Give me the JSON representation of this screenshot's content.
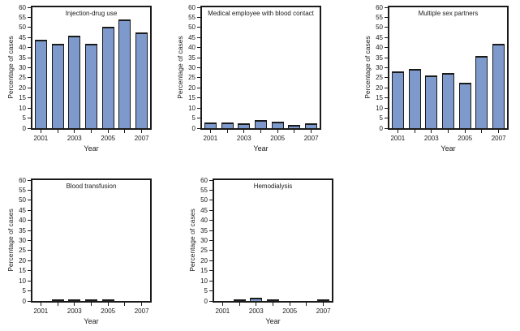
{
  "figure": {
    "background": "#ffffff",
    "text_color": "#1a1a1a",
    "axis_color": "#1a1a1a",
    "bar_fill": "#7e9acd",
    "bar_border": "#1a1a1a"
  },
  "chart_data": [
    {
      "type": "bar",
      "title": "Injection-drug use",
      "xlabel": "Year",
      "ylabel": "Percentage of cases",
      "categories": [
        "2001",
        "2002",
        "2003",
        "2004",
        "2005",
        "2006",
        "2007"
      ],
      "labeled_x_ticks": [
        "2001",
        "2003",
        "2005",
        "2007"
      ],
      "values": [
        44,
        42,
        46,
        42,
        50.5,
        54,
        47.5
      ],
      "ylim": [
        0,
        60
      ],
      "ytick_step": 5,
      "grid": false,
      "legend": "none"
    },
    {
      "type": "bar",
      "title": "Medical employee with blood contact",
      "xlabel": "Year",
      "ylabel": "Percentage of cases",
      "categories": [
        "2001",
        "2002",
        "2003",
        "2004",
        "2005",
        "2006",
        "2007"
      ],
      "labeled_x_ticks": [
        "2001",
        "2003",
        "2005",
        "2007"
      ],
      "values": [
        2.7,
        2.7,
        2.4,
        4,
        3.4,
        1.8,
        2.4
      ],
      "ylim": [
        0,
        60
      ],
      "ytick_step": 5,
      "grid": false,
      "legend": "none"
    },
    {
      "type": "bar",
      "title": "Multiple sex partners",
      "xlabel": "Year",
      "ylabel": "Percentage of cases",
      "categories": [
        "2001",
        "2002",
        "2003",
        "2004",
        "2005",
        "2006",
        "2007"
      ],
      "labeled_x_ticks": [
        "2001",
        "2003",
        "2005",
        "2007"
      ],
      "values": [
        28,
        29.5,
        26,
        27.5,
        22.5,
        36,
        42
      ],
      "ylim": [
        0,
        60
      ],
      "ytick_step": 5,
      "grid": false,
      "legend": "none"
    },
    {
      "type": "bar",
      "title": "Blood transfusion",
      "xlabel": "Year",
      "ylabel": "Percentage of cases",
      "categories": [
        "2001",
        "2002",
        "2003",
        "2004",
        "2005",
        "2006",
        "2007"
      ],
      "labeled_x_ticks": [
        "2001",
        "2003",
        "2005",
        "2007"
      ],
      "values": [
        0,
        0.7,
        0.7,
        0.7,
        0.7,
        0,
        0
      ],
      "ylim": [
        0,
        60
      ],
      "ytick_step": 5,
      "grid": false,
      "legend": "none"
    },
    {
      "type": "bar",
      "title": "Hemodialysis",
      "xlabel": "Year",
      "ylabel": "Percentage of cases",
      "categories": [
        "2001",
        "2002",
        "2003",
        "2004",
        "2005",
        "2006",
        "2007"
      ],
      "labeled_x_ticks": [
        "2001",
        "2003",
        "2005",
        "2007"
      ],
      "values": [
        0,
        1,
        1.7,
        1,
        0,
        0,
        0.7
      ],
      "ylim": [
        0,
        60
      ],
      "ytick_step": 5,
      "grid": false,
      "legend": "none"
    }
  ]
}
